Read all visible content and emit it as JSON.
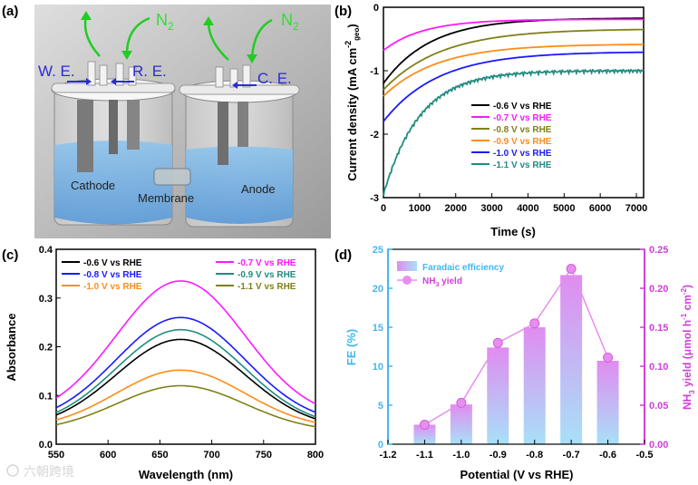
{
  "watermark": "六朝跨境",
  "colors": {
    "black": "#000000",
    "magenta": "#ff18ff",
    "olive": "#808019",
    "orange": "#ff8c19",
    "blue": "#1a1aff",
    "teal": "#1f8c80",
    "fe_axis": "#44b7f0",
    "yield_axis": "#d040d8",
    "bar_top": "#e08cf0",
    "bar_bottom": "#a8e0f8",
    "yield_point": "#e88ef0"
  },
  "panel_a": {
    "label": "(a)",
    "n2_left": "N",
    "n2_left_sub": "2",
    "n2_right": "N",
    "n2_right_sub": "2",
    "we": "W. E.",
    "re": "R. E.",
    "ce": "C. E.",
    "cathode": "Cathode",
    "membrane": "Membrane",
    "anode": "Anode"
  },
  "chart_data": [
    {
      "panel": "(b)",
      "type": "line",
      "title": "",
      "xlabel": "Time (s)",
      "ylabel": "Current density (mA cm",
      "ylabel_sup": "-2",
      "ylabel_sub": "geo",
      "ylabel_close": ")",
      "xlim": [
        0,
        7200
      ],
      "ylim": [
        -3,
        0
      ],
      "xticks": [
        0,
        1000,
        2000,
        3000,
        4000,
        5000,
        6000,
        7000
      ],
      "yticks": [
        0,
        -1,
        -2,
        -3
      ],
      "legend_position": "bottom-center",
      "series": [
        {
          "name": "-0.6 V vs RHE",
          "color": "#000000",
          "start": -1.2,
          "end": -0.17,
          "rate": 1300,
          "noise": 0
        },
        {
          "name": "-0.7 V vs RHE",
          "color": "#ff18ff",
          "start": -0.68,
          "end": -0.19,
          "rate": 1100,
          "noise": 0
        },
        {
          "name": "-0.8 V vs RHE",
          "color": "#808019",
          "start": -1.3,
          "end": -0.34,
          "rate": 1600,
          "noise": 0
        },
        {
          "name": "-0.9 V vs RHE",
          "color": "#ff8c19",
          "start": -1.4,
          "end": -0.58,
          "rate": 1500,
          "noise": 0
        },
        {
          "name": "-1.0 V vs RHE",
          "color": "#1a1aff",
          "start": -1.8,
          "end": -0.7,
          "rate": 1500,
          "noise": 0
        },
        {
          "name": "-1.1 V vs RHE",
          "color": "#1f8c80",
          "start": -2.95,
          "end": -1.0,
          "rate": 1000,
          "noise": 0.03
        }
      ]
    },
    {
      "panel": "(c)",
      "type": "line",
      "title": "",
      "xlabel": "Wavelength (nm)",
      "ylabel": "Absorbance",
      "xlim": [
        550,
        800
      ],
      "ylim": [
        0,
        0.4
      ],
      "xticks": [
        550,
        600,
        650,
        700,
        750,
        800
      ],
      "yticks": [
        0,
        0.1,
        0.2,
        0.3,
        0.4
      ],
      "legend_position": "top",
      "series": [
        {
          "name": "-0.6 V vs RHE",
          "color": "#000000",
          "peak_x": 670,
          "peak": 0.215,
          "edge": 0.06
        },
        {
          "name": "-0.7 V vs RHE",
          "color": "#ff18ff",
          "peak_x": 670,
          "peak": 0.335,
          "edge": 0.095
        },
        {
          "name": "-0.8 V vs RHE",
          "color": "#1a1aff",
          "peak_x": 670,
          "peak": 0.26,
          "edge": 0.075
        },
        {
          "name": "-0.9 V vs RHE",
          "color": "#1f8c80",
          "peak_x": 670,
          "peak": 0.235,
          "edge": 0.065
        },
        {
          "name": "-1.0 V vs RHE",
          "color": "#ff8c19",
          "peak_x": 670,
          "peak": 0.152,
          "edge": 0.05
        },
        {
          "name": "-1.1 V vs RHE",
          "color": "#808019",
          "peak_x": 670,
          "peak": 0.12,
          "edge": 0.04
        }
      ]
    },
    {
      "panel": "(d)",
      "type": "bar",
      "title": "",
      "xlabel": "Potential (V vs RHE)",
      "ylabel": "FE (%)",
      "y2label": "NH",
      "y2label_sub": "3",
      "y2label_rest": " yield (μmol h",
      "y2label_sup1": "-1",
      "y2label_mid": " cm",
      "y2label_sup2": "-2",
      "y2label_close": ")",
      "xlim": [
        -1.2,
        -0.5
      ],
      "ylim": [
        0,
        25
      ],
      "y2lim": [
        0,
        0.25
      ],
      "xticks": [
        -1.2,
        -1.1,
        -1.0,
        -0.9,
        -0.8,
        -0.7,
        -0.6,
        -0.5
      ],
      "xtick_labels": [
        "-1.2",
        "-1.1",
        "-1.0",
        "-0.9",
        "-0.8",
        "-0.7",
        "-0.6",
        "-0.5"
      ],
      "yticks": [
        0,
        5,
        10,
        15,
        20,
        25
      ],
      "y2ticks": [
        0,
        0.05,
        0.1,
        0.15,
        0.2,
        0.25
      ],
      "y2tick_labels": [
        "0.00",
        "0.05",
        "0.10",
        "0.15",
        "0.20",
        "0.25"
      ],
      "legend_position": "top-left",
      "legend": [
        "Faradaic efficiency",
        "NH",
        "3",
        " yield"
      ],
      "x": [
        -1.1,
        -1.0,
        -0.9,
        -0.8,
        -0.7,
        -0.6
      ],
      "fe_values": [
        2.5,
        5.1,
        12.4,
        15.0,
        21.7,
        10.7
      ],
      "nh3_yield": [
        0.025,
        0.053,
        0.13,
        0.155,
        0.225,
        0.111
      ]
    }
  ]
}
